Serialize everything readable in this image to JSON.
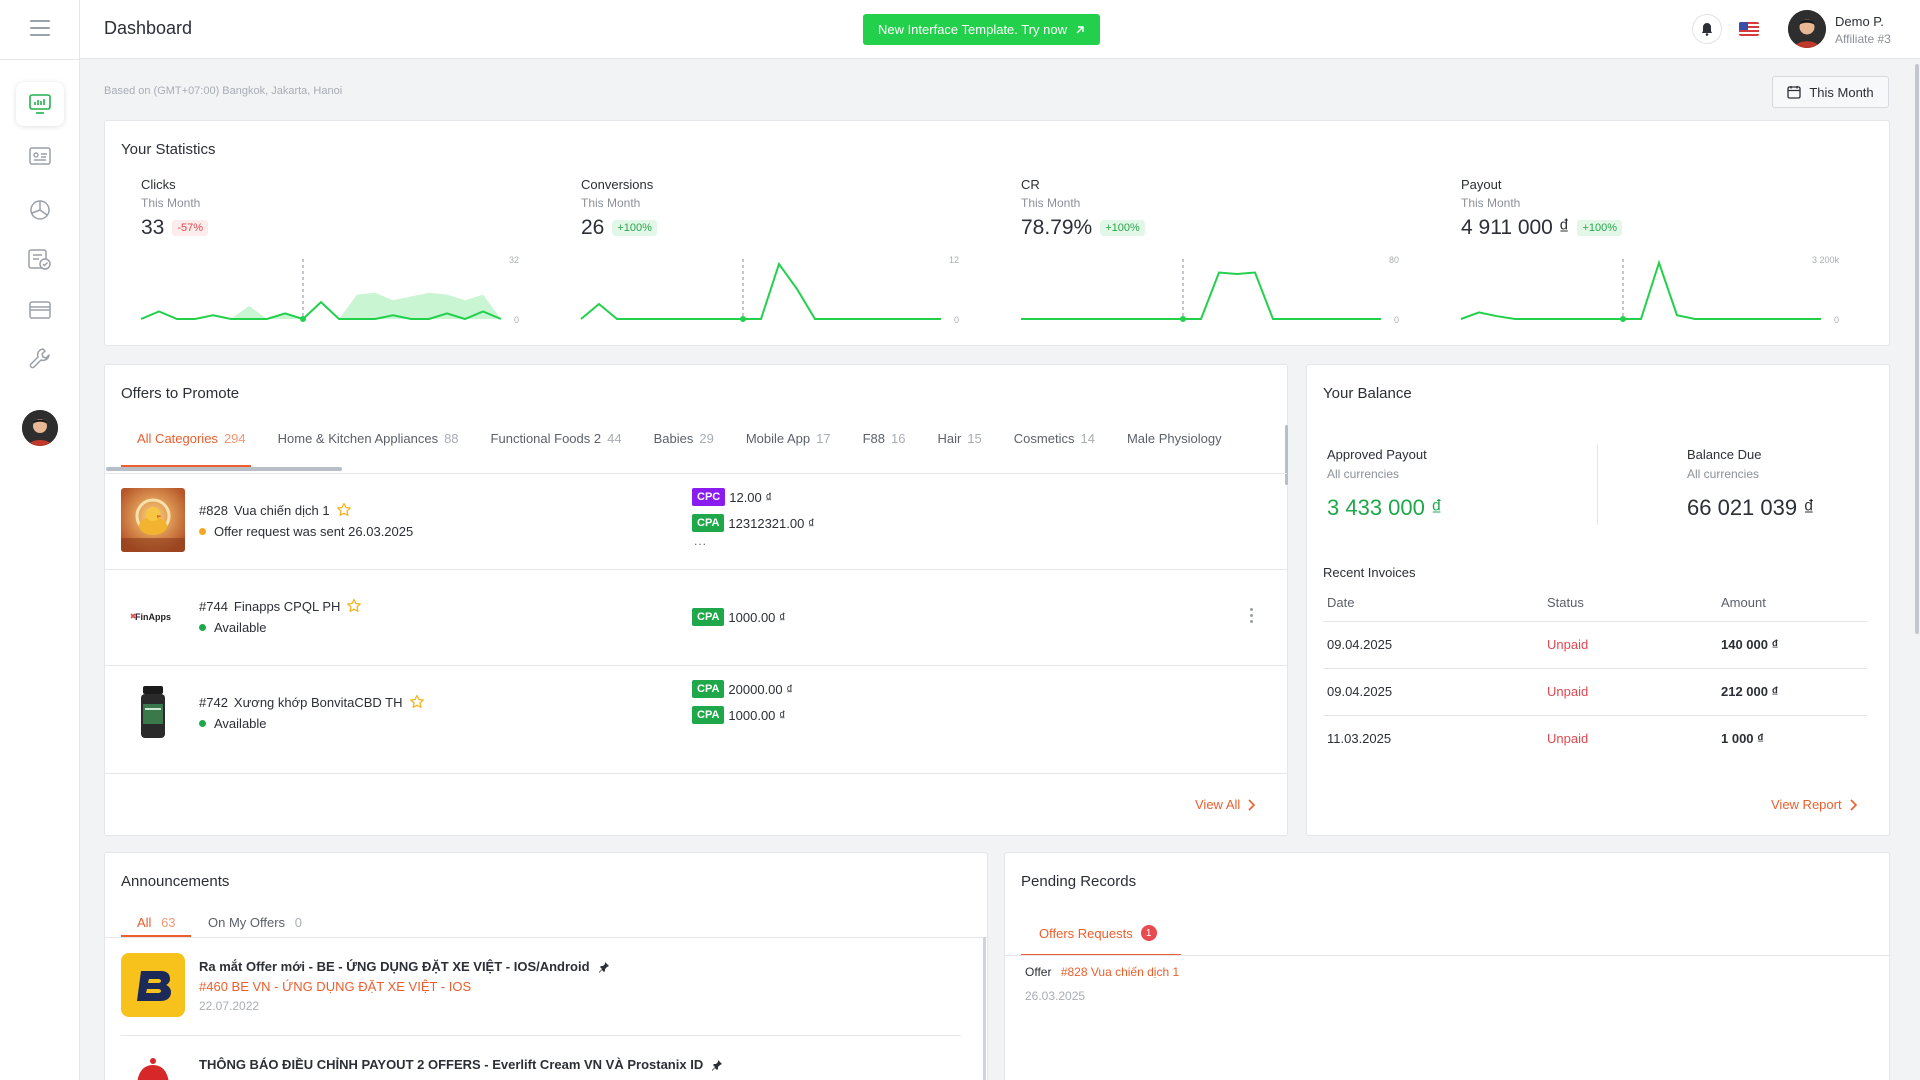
{
  "header": {
    "title": "Dashboard",
    "promo_label": "New Interface Template. Try now",
    "user_name": "Demo P.",
    "user_role": "Affiliate #3"
  },
  "timezone_note": "Based on (GMT+07:00) Bangkok, Jakarta, Hanoi",
  "period_button": "This Month",
  "sidebar": {
    "items": [
      {
        "name": "dashboard",
        "icon": "chart-monitor-icon"
      },
      {
        "name": "offers",
        "icon": "id-card-icon"
      },
      {
        "name": "statistics",
        "icon": "pie-chart-icon"
      },
      {
        "name": "tasks",
        "icon": "checklist-icon"
      },
      {
        "name": "payments",
        "icon": "credit-card-icon"
      },
      {
        "name": "tools",
        "icon": "wrench-icon"
      }
    ]
  },
  "statistics": {
    "title": "Your Statistics",
    "cards": [
      {
        "label": "Clicks",
        "period": "This Month",
        "value": "33",
        "delta": "-57%",
        "delta_type": "neg",
        "axis_max": "32",
        "axis_min": "0"
      },
      {
        "label": "Conversions",
        "period": "This Month",
        "value": "26",
        "delta": "+100%",
        "delta_type": "pos",
        "axis_max": "12",
        "axis_min": "0"
      },
      {
        "label": "CR",
        "period": "This Month",
        "value": "78.79%",
        "delta": "+100%",
        "delta_type": "pos",
        "axis_max": "80",
        "axis_min": "0"
      },
      {
        "label": "Payout",
        "period": "This Month",
        "value": "4 911 000 ₫",
        "delta": "+100%",
        "delta_type": "pos",
        "axis_max": "3 200k",
        "axis_min": "0"
      }
    ]
  },
  "chart_data": [
    {
      "type": "area",
      "title": "Clicks",
      "x": [
        1,
        2,
        3,
        4,
        5,
        6,
        7,
        8,
        9,
        10,
        11,
        12,
        13,
        14,
        15,
        16,
        17,
        18,
        19,
        20,
        21
      ],
      "series": [
        {
          "values": [
            0,
            4,
            0,
            0,
            2,
            0,
            0,
            0,
            3,
            0,
            9,
            0,
            0,
            0,
            2,
            0,
            0,
            3,
            0,
            4,
            0
          ]
        },
        {
          "values": [
            0,
            0,
            0,
            0,
            0,
            0,
            7,
            0,
            3,
            0,
            0,
            0,
            13,
            14,
            10,
            12,
            14,
            13,
            10,
            13,
            0
          ]
        }
      ],
      "ylim": [
        0,
        32
      ]
    },
    {
      "type": "line",
      "title": "Conversions",
      "x": [
        1,
        2,
        3,
        4,
        5,
        6,
        7,
        8,
        9,
        10,
        11,
        12,
        13,
        14,
        15,
        16,
        17,
        18,
        19,
        20,
        21
      ],
      "values": [
        0,
        3,
        0,
        0,
        0,
        0,
        0,
        0,
        0,
        0,
        0,
        11,
        6,
        0,
        0,
        0,
        0,
        0,
        0,
        0,
        0
      ],
      "ylim": [
        0,
        12
      ]
    },
    {
      "type": "line",
      "title": "CR",
      "x": [
        1,
        2,
        3,
        4,
        5,
        6,
        7,
        8,
        9,
        10,
        11,
        12,
        13,
        14,
        15,
        16,
        17,
        18,
        19,
        20,
        21
      ],
      "values": [
        0,
        0,
        0,
        0,
        0,
        0,
        0,
        0,
        0,
        0,
        0,
        62,
        60,
        62,
        0,
        0,
        0,
        0,
        0,
        0,
        0
      ],
      "ylim": [
        0,
        80
      ]
    },
    {
      "type": "line",
      "title": "Payout",
      "x": [
        1,
        2,
        3,
        4,
        5,
        6,
        7,
        8,
        9,
        10,
        11,
        12,
        13,
        14,
        15,
        16,
        17,
        18,
        19,
        20,
        21
      ],
      "values": [
        0,
        350,
        150,
        0,
        0,
        0,
        0,
        0,
        0,
        0,
        0,
        3000,
        200,
        0,
        0,
        0,
        0,
        0,
        0,
        0,
        0
      ],
      "ylim": [
        0,
        3200
      ]
    }
  ],
  "offers": {
    "title": "Offers to Promote",
    "tabs": [
      {
        "label": "All Categories",
        "count": "294"
      },
      {
        "label": "Home & Kitchen Appliances",
        "count": "88"
      },
      {
        "label": "Functional Foods 2",
        "count": "44"
      },
      {
        "label": "Babies",
        "count": "29"
      },
      {
        "label": "Mobile App",
        "count": "17"
      },
      {
        "label": "F88",
        "count": "16"
      },
      {
        "label": "Hair",
        "count": "15"
      },
      {
        "label": "Cosmetics",
        "count": "14"
      },
      {
        "label": "Male Physiology",
        "count": ""
      }
    ],
    "rows": [
      {
        "id": "#828",
        "name": "Vua chiến dịch 1",
        "status": "Offer request was sent 26.03.2025",
        "status_color": "#f5a623",
        "prices": [
          {
            "type": "CPC",
            "value": "12.00 ₫"
          },
          {
            "type": "CPA",
            "value": "12312321.00 ₫"
          }
        ],
        "more": "..."
      },
      {
        "id": "#744",
        "name": "Finapps CPQL PH",
        "status": "Available",
        "status_color": "#1ea84a",
        "prices": [
          {
            "type": "CPA",
            "value": "1000.00 ₫"
          }
        ],
        "more": ""
      },
      {
        "id": "#742",
        "name": "Xương khớp BonvitaCBD TH",
        "status": "Available",
        "status_color": "#1ea84a",
        "prices": [
          {
            "type": "CPA",
            "value": "20000.00 ₫"
          },
          {
            "type": "CPA",
            "value": "1000.00 ₫"
          }
        ],
        "more": ""
      }
    ],
    "logo_text": "FinApps",
    "view_all": "View All"
  },
  "balance": {
    "title": "Your Balance",
    "approved_label": "Approved Payout",
    "approved_sub": "All currencies",
    "approved_value": "3 433 000 ₫",
    "due_label": "Balance Due",
    "due_sub": "All currencies",
    "due_value": "66 021 039 ₫",
    "invoices_title": "Recent Invoices",
    "headers": [
      "Date",
      "Status",
      "Amount"
    ],
    "invoices": [
      {
        "date": "09.04.2025",
        "status": "Unpaid",
        "amount": "140 000 ₫"
      },
      {
        "date": "09.04.2025",
        "status": "Unpaid",
        "amount": "212 000 ₫"
      },
      {
        "date": "11.03.2025",
        "status": "Unpaid",
        "amount": "1 000 ₫"
      }
    ],
    "view_report": "View Report"
  },
  "announcements": {
    "title": "Announcements",
    "tabs": [
      {
        "label": "All",
        "count": "63"
      },
      {
        "label": "On My Offers",
        "count": "0"
      }
    ],
    "items": [
      {
        "title": "Ra mắt Offer mới - BE - ỨNG DỤNG ĐẶT XE VIỆT - IOS/Android",
        "link": "#460 BE VN - ỨNG DỤNG ĐẶT XE VIỆT - IOS",
        "date": "22.07.2022"
      },
      {
        "title": "THÔNG BÁO ĐIỀU CHỈNH PAYOUT 2 OFFERS - Everlift Cream VN VÀ Prostanix ID",
        "link": "",
        "date": ""
      }
    ]
  },
  "pending": {
    "title": "Pending Records",
    "tab_label": "Offers Requests",
    "tab_count": "1",
    "record_label": "Offer",
    "record_link": "#828 Vua chiến dịch 1",
    "record_date": "26.03.2025"
  },
  "colors": {
    "accent": "#ec5e2c",
    "success": "#1ea84a",
    "promo": "#22d04b",
    "chart_line": "#22d04b",
    "chart_fill": "#c9f5d3"
  }
}
